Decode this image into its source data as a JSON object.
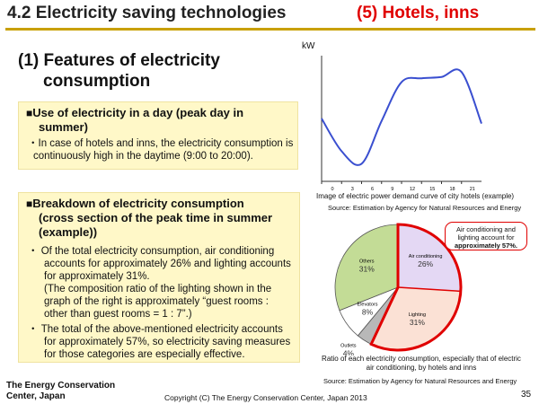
{
  "header": {
    "title": "4.2 Electricity saving technologies",
    "subtitle": "(5) Hotels, inns"
  },
  "section": {
    "heading_line1": "(1) Features of electricity",
    "heading_line2": "consumption"
  },
  "box1": {
    "bullet": "■",
    "heading_line1": "Use of electricity in a day (peak day in",
    "heading_line2": "summer)",
    "text_line1": "・In case of hotels and inns, the electricity consumption is",
    "text_line2": "continuously high in the daytime (9:00 to 20:00)."
  },
  "box2": {
    "bullet": "■",
    "heading_line1": "Breakdown of electricity consumption",
    "heading_line2": "(cross section of the peak time in summer",
    "heading_line3": "(example))",
    "p1_line1": "・ Of the total electricity consumption, air conditioning",
    "p1_line2": "accounts for approximately 26% and lighting accounts",
    "p1_line3": "for approximately 31%.",
    "p1_line4": "(The composition ratio of the lighting shown in the",
    "p1_line5": "graph of the right is approximately “guest rooms :",
    "p1_line6": "other than guest rooms = 1 : 7”.)",
    "p2_line1": "・ The total of the above-mentioned electricity accounts",
    "p2_line2": "for approximately 57%, so electricity saving measures",
    "p2_line3": "for those categories are especially effective."
  },
  "chart_data": [
    {
      "type": "line",
      "ylabel": "kW",
      "xlabel": "",
      "x": [
        0,
        3,
        6,
        9,
        12,
        15,
        18,
        21,
        24
      ],
      "y": [
        0.5,
        0.24,
        0.14,
        0.48,
        0.79,
        0.82,
        0.83,
        0.87,
        0.46
      ],
      "x_ticks": [
        "0",
        "3",
        "6",
        "9",
        "12",
        "15",
        "18",
        "21"
      ],
      "caption": "Image of electric power demand curve of city hotels (example)",
      "source": "Source: Estimation by Agency for Natural Resources and Energy",
      "line_color": "#3a4fd0"
    },
    {
      "type": "pie",
      "categories": [
        "Air conditioning",
        "Lighting",
        "Outlets",
        "Elevators",
        "Others"
      ],
      "values": [
        26,
        31,
        4,
        8,
        31
      ],
      "labels": [
        "26%",
        "31%",
        "4%",
        "8%",
        "31%"
      ],
      "colors": [
        "#e4d8f4",
        "#fbe1d5",
        "#b8b8b8",
        "#ffffff",
        "#c3dc96"
      ],
      "highlight_color": "#e00000",
      "callout_line1": "Air conditioning and",
      "callout_line2": "lighting account for",
      "callout_line3": "approximately 57%.",
      "caption_line1": "Ratio of each electricity consumption, especially that of electric",
      "caption_line2": "air conditioning, by hotels and inns",
      "source": "Source: Estimation by Agency for Natural Resources and Energy"
    }
  ],
  "footer": {
    "org_line1": "The Energy Conservation",
    "org_line2": "Center, Japan",
    "copyright": "Copyright (C) The Energy Conservation Center, Japan 2013",
    "page": "35"
  }
}
